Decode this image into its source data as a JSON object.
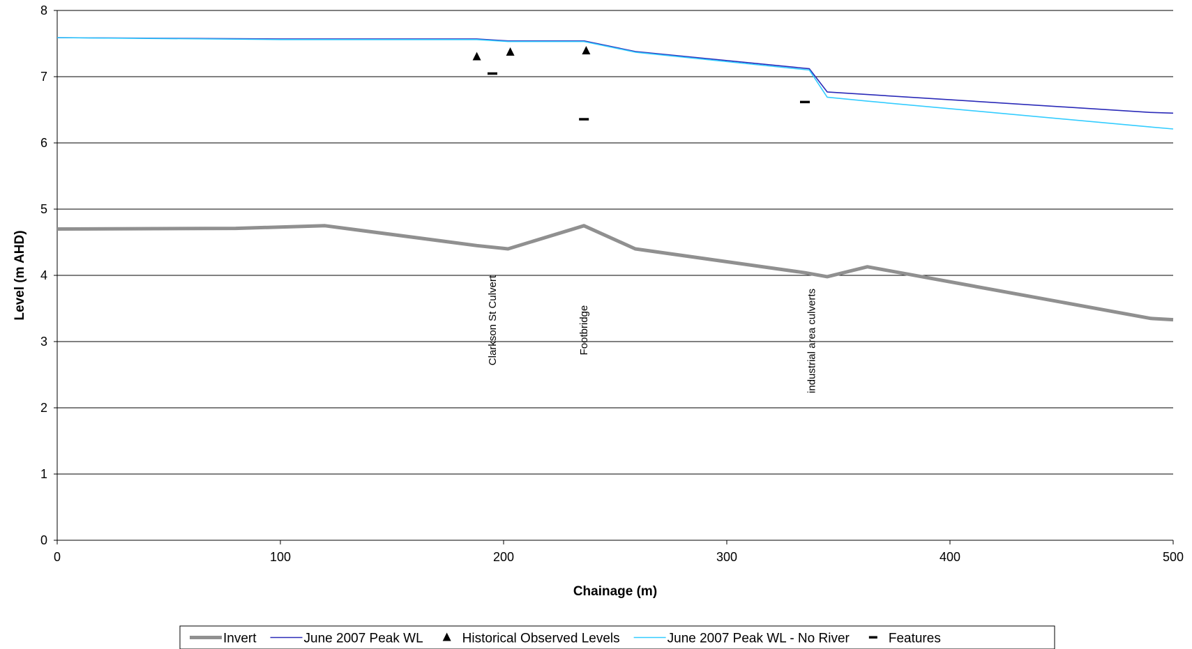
{
  "chart_data": {
    "type": "line",
    "xlabel": "Chainage (m)",
    "ylabel": "Level (m AHD)",
    "xlim": [
      0,
      500
    ],
    "ylim": [
      0,
      8
    ],
    "xticks": [
      0,
      100,
      200,
      300,
      400,
      500
    ],
    "yticks": [
      0,
      1,
      2,
      3,
      4,
      5,
      6,
      7,
      8
    ],
    "grid": "horizontal",
    "legend_position": "bottom",
    "series": [
      {
        "name": "Invert",
        "kind": "line",
        "color": "#909090",
        "x": [
          0,
          80,
          120,
          188,
          202,
          236,
          259,
          335,
          345,
          363,
          490,
          500
        ],
        "y": [
          4.7,
          4.71,
          4.75,
          4.45,
          4.4,
          4.75,
          4.4,
          4.04,
          3.98,
          4.13,
          3.35,
          3.33
        ]
      },
      {
        "name": "June 2007 Peak WL",
        "kind": "line",
        "color": "#2a2ab8",
        "x": [
          0,
          100,
          188,
          202,
          236,
          259,
          337,
          345,
          363,
          490,
          500
        ],
        "y": [
          7.59,
          7.57,
          7.57,
          7.54,
          7.54,
          7.38,
          7.12,
          6.77,
          6.73,
          6.46,
          6.45
        ]
      },
      {
        "name": "Historical Observed Levels",
        "kind": "marker-triangle",
        "color": "#000000",
        "x": [
          188,
          203,
          237
        ],
        "y": [
          7.3,
          7.37,
          7.39
        ]
      },
      {
        "name": "June 2007 Peak WL - No River",
        "kind": "line",
        "color": "#33ccff",
        "x": [
          0,
          100,
          188,
          202,
          236,
          259,
          337,
          345,
          363,
          490,
          500
        ],
        "y": [
          7.59,
          7.56,
          7.56,
          7.53,
          7.53,
          7.37,
          7.1,
          6.69,
          6.63,
          6.24,
          6.21
        ]
      },
      {
        "name": "Features",
        "kind": "marker-dash",
        "color": "#000000",
        "x": [
          195,
          236,
          335
        ],
        "y": [
          7.05,
          6.36,
          6.62
        ]
      }
    ],
    "annotations": [
      {
        "text": "Clarkson St Culvert",
        "x": 195,
        "y": 4.0
      },
      {
        "text": "Footbridge",
        "x": 236,
        "y": 3.55
      },
      {
        "text": "industrial area culverts",
        "x": 338,
        "y": 3.8
      }
    ]
  }
}
